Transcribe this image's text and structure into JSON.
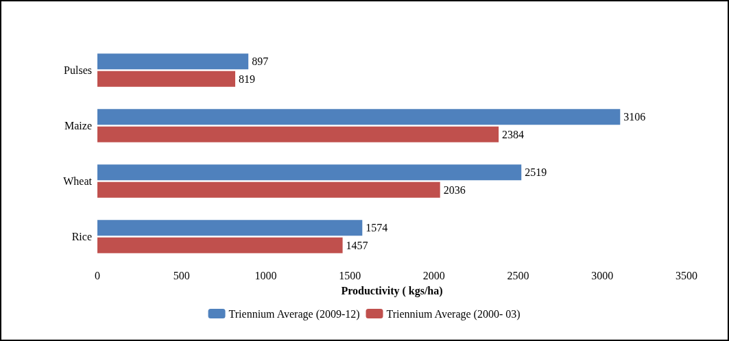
{
  "chart_data": {
    "type": "bar",
    "orientation": "horizontal",
    "xlabel": "Productivity ( kgs/ha)",
    "categories": [
      "Pulses",
      "Maize",
      "Wheat",
      "Rice"
    ],
    "series": [
      {
        "name": "Triennium Average (2009-12)",
        "color": "#4f81bd",
        "values": [
          897,
          3106,
          2519,
          1574
        ]
      },
      {
        "name": "Triennium Average (2000- 03)",
        "color": "#c0504d",
        "values": [
          819,
          2384,
          2036,
          1457
        ]
      }
    ],
    "xlim": [
      0,
      3500
    ],
    "xticks": [
      0,
      500,
      1000,
      1500,
      2000,
      2500,
      3000,
      3500
    ],
    "data_labels": true,
    "legend": "bottom",
    "grid": false
  }
}
